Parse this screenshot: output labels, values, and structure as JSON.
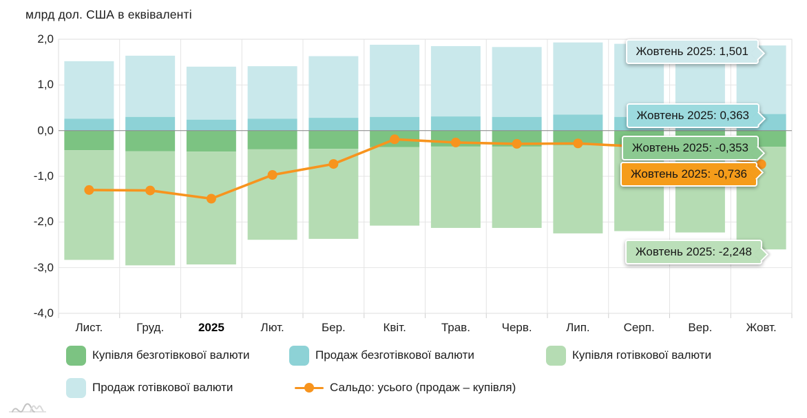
{
  "chart_data": {
    "type": "bar",
    "title": "млрд дол. США в еквіваленті",
    "categories": [
      "Лист.",
      "Груд.",
      "2025",
      "Лют.",
      "Бер.",
      "Квіт.",
      "Трав.",
      "Черв.",
      "Лип.",
      "Серп.",
      "Вер.",
      "Жовт."
    ],
    "bold_category": "2025",
    "stacked": true,
    "grid": true,
    "legend_position": "bottom",
    "ylim": [
      -4,
      2
    ],
    "ytick_labels": [
      "2,0",
      "1,0",
      "0,0",
      "-1,0",
      "-2,0",
      "-3,0",
      "-4,0"
    ],
    "series": [
      {
        "id": "sale_cash",
        "name": "Продаж готівкової валюти",
        "type": "bar",
        "stack": "up",
        "order": 2,
        "color": "#c9e8eb",
        "values": [
          1.26,
          1.34,
          1.16,
          1.15,
          1.35,
          1.58,
          1.54,
          1.53,
          1.58,
          1.6,
          1.56,
          1.501
        ]
      },
      {
        "id": "sale_noncash",
        "name": "Продаж безготівкової валюти",
        "type": "bar",
        "stack": "up",
        "order": 1,
        "color": "#8dd2d6",
        "values": [
          0.26,
          0.3,
          0.24,
          0.26,
          0.28,
          0.3,
          0.31,
          0.3,
          0.35,
          0.3,
          0.3,
          0.363
        ]
      },
      {
        "id": "buy_noncash",
        "name": "Купівля безготівкової валюти",
        "type": "bar",
        "stack": "down",
        "order": 1,
        "color": "#7cc382",
        "values": [
          -0.43,
          -0.45,
          -0.46,
          -0.41,
          -0.4,
          -0.36,
          -0.35,
          -0.35,
          -0.32,
          -0.35,
          -0.35,
          -0.353
        ]
      },
      {
        "id": "buy_cash",
        "name": "Купівля готівкової валюти",
        "type": "bar",
        "stack": "down",
        "order": 2,
        "color": "#b5dcb3",
        "values": [
          -2.4,
          -2.5,
          -2.47,
          -1.98,
          -1.97,
          -1.72,
          -1.78,
          -1.78,
          -1.93,
          -1.85,
          -1.88,
          -2.248
        ]
      },
      {
        "id": "saldo",
        "name": "Сальдо: усього (продаж – купівля)",
        "type": "line",
        "color": "#f7941e",
        "values": [
          -1.3,
          -1.31,
          -1.49,
          -0.97,
          -0.73,
          -0.19,
          -0.26,
          -0.29,
          -0.28,
          -0.35,
          -0.48,
          -0.736
        ]
      }
    ]
  },
  "tooltips": [
    {
      "text": "Жовтень 2025: 1,501",
      "bg": "#cfe9ec"
    },
    {
      "text": "Жовтень 2025: 0,363",
      "bg": "#9cdade"
    },
    {
      "text": "Жовтень 2025: -0,353",
      "bg": "#8cc991"
    },
    {
      "text": "Жовтень 2025: -0,736",
      "bg": "#f59c1a"
    },
    {
      "text": "Жовтень 2025: -2,248",
      "bg": "#bbdfb9"
    }
  ],
  "legend_rows": [
    [
      "buy_noncash",
      "sale_noncash",
      "buy_cash"
    ],
    [
      "sale_cash",
      "saldo"
    ]
  ],
  "colors": {
    "grid": "#e4e4e4",
    "zero_line": "#8f8f8f",
    "plot_border": "#dedede",
    "tick": "#cfcfcf",
    "saldo": "#f7941e"
  },
  "logo": {
    "name": "amcharts-logo"
  }
}
